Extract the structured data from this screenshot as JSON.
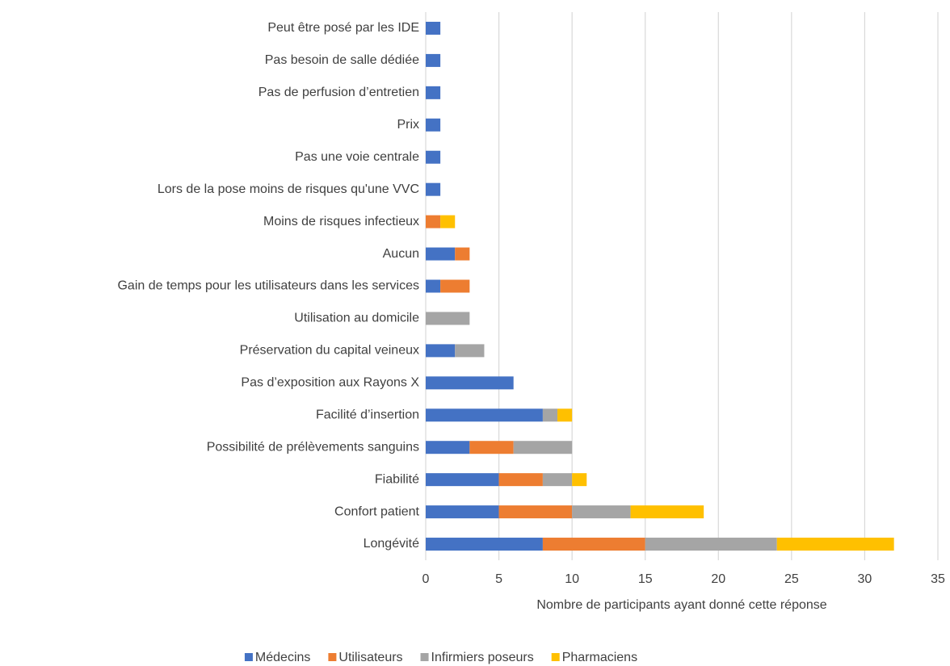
{
  "chart_data": {
    "type": "stacked-horizontal-bar",
    "categories": [
      "Peut être posé par les IDE",
      "Pas besoin de salle dédiée",
      "Pas de perfusion d’entretien",
      "Prix",
      "Pas une voie centrale",
      "Lors de la pose moins de risques qu'une VVC",
      "Moins de risques infectieux",
      "Aucun",
      "Gain de temps pour les utilisateurs dans les services",
      "Utilisation au domicile",
      "Préservation du capital veineux",
      "Pas d’exposition aux Rayons X",
      "Facilité d’insertion",
      "Possibilité de prélèvements sanguins",
      "Fiabilité",
      "Confort patient",
      "Longévité"
    ],
    "series": [
      {
        "name": "Médecins",
        "color": "#4472c4",
        "values": [
          1,
          1,
          1,
          1,
          1,
          1,
          0,
          2,
          1,
          0,
          2,
          6,
          8,
          3,
          5,
          5,
          8
        ]
      },
      {
        "name": "Utilisateurs",
        "color": "#ed7d31",
        "values": [
          0,
          0,
          0,
          0,
          0,
          0,
          1,
          1,
          2,
          0,
          0,
          0,
          0,
          3,
          3,
          5,
          7
        ]
      },
      {
        "name": "Infirmiers poseurs",
        "color": "#a5a5a5",
        "values": [
          0,
          0,
          0,
          0,
          0,
          0,
          0,
          0,
          0,
          3,
          2,
          0,
          1,
          4,
          2,
          4,
          9
        ]
      },
      {
        "name": "Pharmaciens",
        "color": "#ffc000",
        "values": [
          0,
          0,
          0,
          0,
          0,
          0,
          1,
          0,
          0,
          0,
          0,
          0,
          1,
          0,
          1,
          5,
          8
        ]
      }
    ],
    "xlabel": "Nombre de participants ayant donné cette réponse",
    "xlim": [
      0,
      35
    ],
    "xticks": [
      0,
      5,
      10,
      15,
      20,
      25,
      30,
      35
    ],
    "grid": true,
    "legend": "bottom"
  }
}
